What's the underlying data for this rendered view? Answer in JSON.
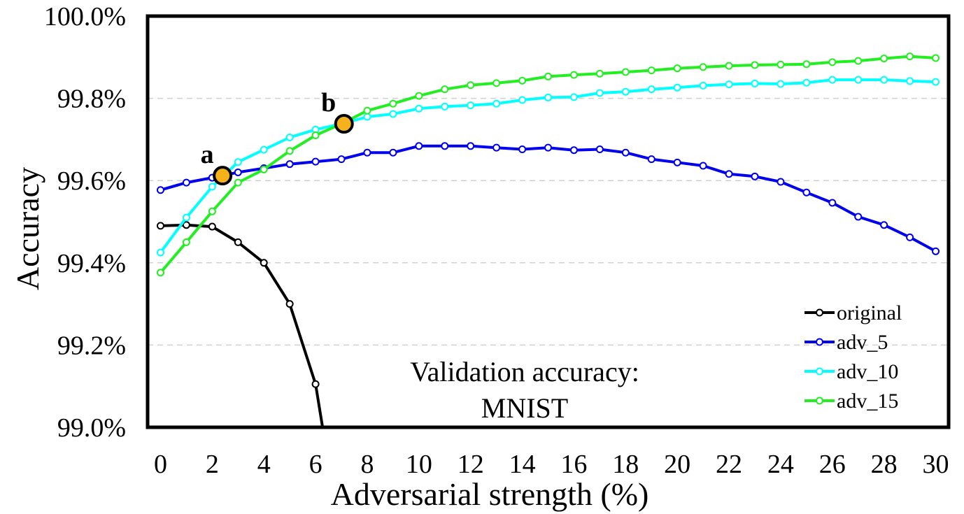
{
  "chart_data": {
    "type": "line",
    "title": "",
    "xlabel": "Adversarial strength (%)",
    "ylabel": "Accuracy",
    "xlim": [
      -0.5,
      30.5
    ],
    "ylim": [
      99.0,
      100.0
    ],
    "x_ticks": [
      0,
      2,
      4,
      6,
      8,
      10,
      12,
      14,
      16,
      18,
      20,
      22,
      24,
      26,
      28,
      30
    ],
    "y_ticks": [
      99.0,
      99.2,
      99.4,
      99.6,
      99.8,
      100.0
    ],
    "y_tick_labels": [
      "99.0%",
      "99.2%",
      "99.4%",
      "99.6%",
      "99.8%",
      "100.0%"
    ],
    "grid": "horizontal dashed",
    "legend_position": "lower-right",
    "annotation": [
      "Validation accuracy:",
      "MNIST"
    ],
    "series": [
      {
        "name": "original",
        "color": "#000000",
        "x": [
          0,
          1,
          2,
          3,
          4,
          5,
          6,
          6.27
        ],
        "y": [
          99.49,
          99.492,
          99.488,
          99.45,
          99.4,
          99.3,
          99.105,
          99.0
        ]
      },
      {
        "name": "adv_5",
        "color": "#0000ee",
        "x": [
          0,
          1,
          2,
          3,
          4,
          5,
          6,
          7,
          8,
          9,
          10,
          11,
          12,
          13,
          14,
          15,
          16,
          17,
          18,
          19,
          20,
          21,
          22,
          23,
          24,
          25,
          26,
          27,
          28,
          29,
          30
        ],
        "y": [
          99.577,
          99.595,
          99.607,
          99.62,
          99.63,
          99.64,
          99.646,
          99.652,
          99.668,
          99.668,
          99.684,
          99.684,
          99.684,
          99.68,
          99.676,
          99.68,
          99.674,
          99.676,
          99.668,
          99.652,
          99.644,
          99.636,
          99.616,
          99.61,
          99.597,
          99.571,
          99.546,
          99.512,
          99.492,
          99.462,
          99.428
        ]
      },
      {
        "name": "adv_10",
        "color": "#00ffff",
        "x": [
          0,
          1,
          2,
          3,
          4,
          5,
          6,
          7,
          8,
          9,
          10,
          11,
          12,
          13,
          14,
          15,
          16,
          17,
          18,
          19,
          20,
          21,
          22,
          23,
          24,
          25,
          26,
          27,
          28,
          29,
          30
        ],
        "y": [
          99.425,
          99.51,
          99.585,
          99.645,
          99.675,
          99.705,
          99.724,
          99.738,
          99.755,
          99.762,
          99.775,
          99.78,
          99.783,
          99.787,
          99.796,
          99.802,
          99.803,
          99.813,
          99.816,
          99.822,
          99.826,
          99.831,
          99.834,
          99.836,
          99.835,
          99.838,
          99.845,
          99.845,
          99.845,
          99.842,
          99.84
        ]
      },
      {
        "name": "adv_15",
        "color": "#22ee22",
        "x": [
          0,
          1,
          2,
          3,
          4,
          5,
          6,
          7,
          8,
          9,
          10,
          11,
          12,
          13,
          14,
          15,
          16,
          17,
          18,
          19,
          20,
          21,
          22,
          23,
          24,
          25,
          26,
          27,
          28,
          29,
          30
        ],
        "y": [
          99.376,
          99.45,
          99.525,
          99.595,
          99.627,
          99.672,
          99.71,
          99.738,
          99.77,
          99.787,
          99.806,
          99.822,
          99.832,
          99.837,
          99.843,
          99.853,
          99.857,
          99.86,
          99.864,
          99.868,
          99.873,
          99.876,
          99.879,
          99.881,
          99.882,
          99.883,
          99.888,
          99.891,
          99.897,
          99.902,
          99.898
        ]
      }
    ],
    "highlight_points": [
      {
        "label": "a",
        "x": 2.4,
        "y": 99.612,
        "color": "#f5b21b"
      },
      {
        "label": "b",
        "x": 7.1,
        "y": 99.738,
        "color": "#f5b21b"
      }
    ]
  }
}
